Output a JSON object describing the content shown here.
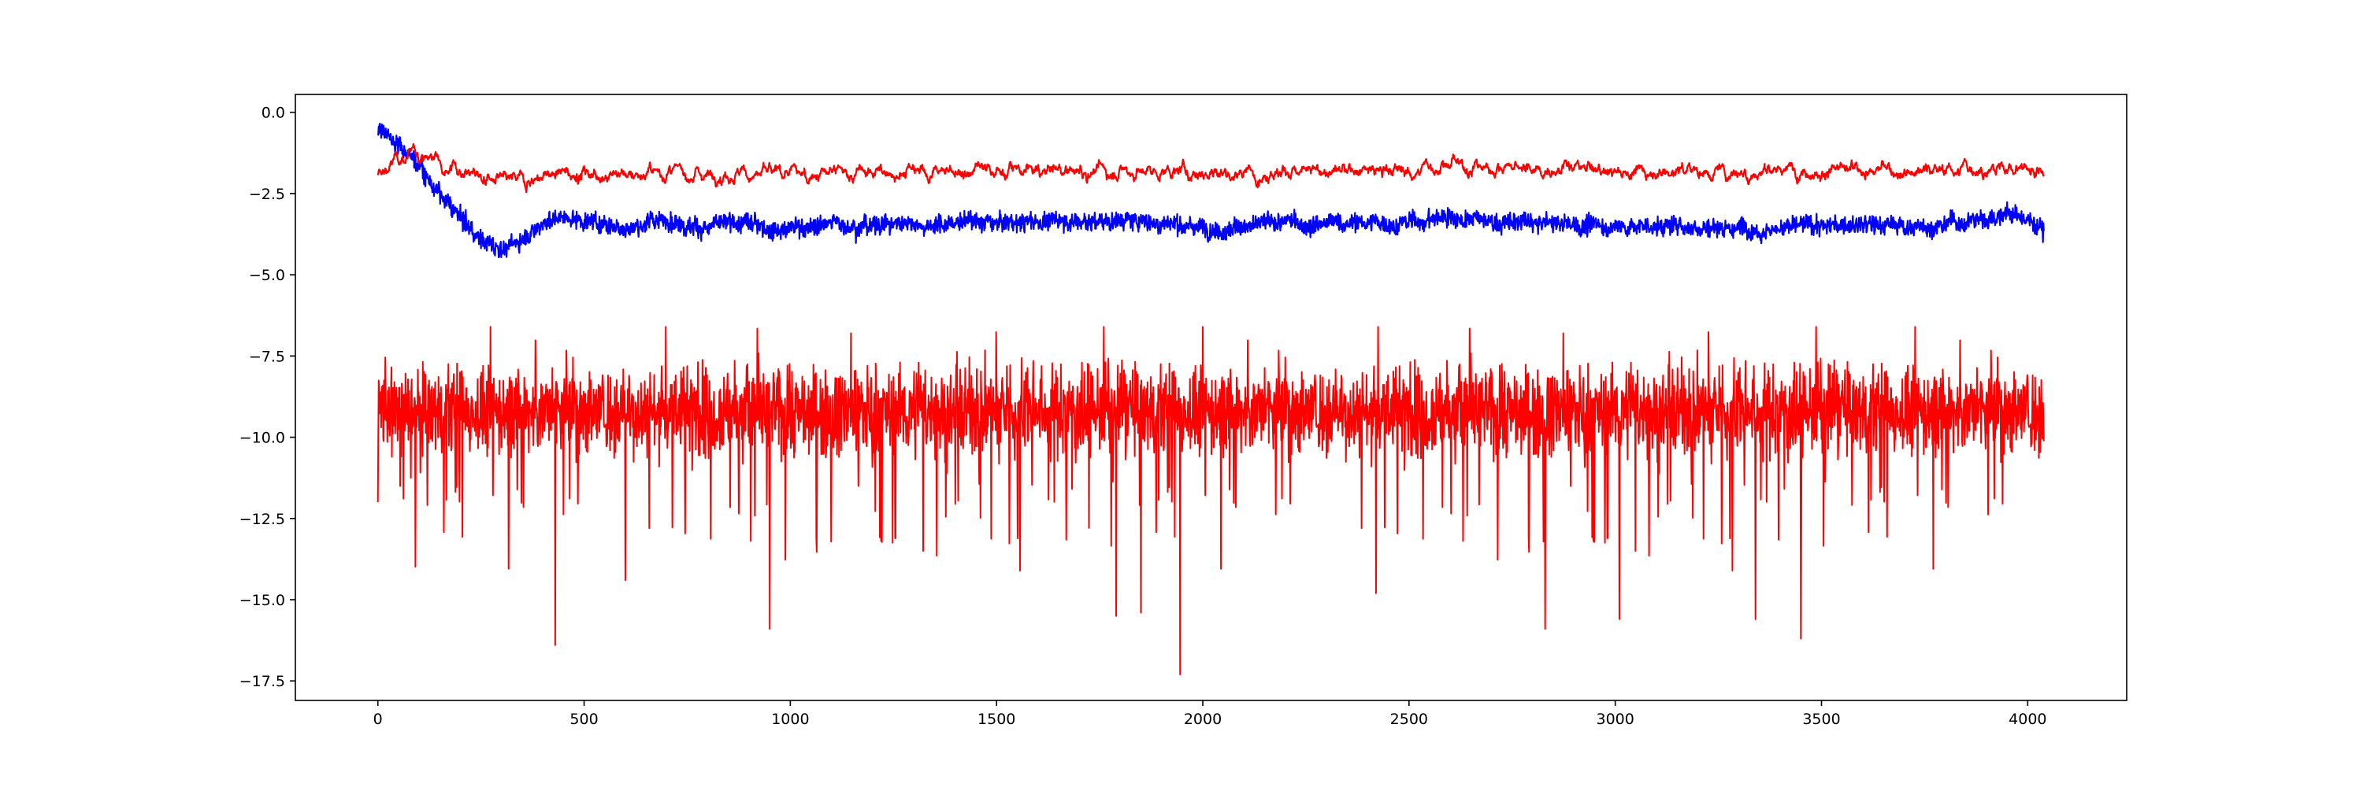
{
  "chart_data": {
    "type": "line",
    "title": "",
    "xlabel": "",
    "ylabel": "",
    "xlim": [
      -200,
      4240
    ],
    "ylim": [
      -18.1,
      0.55
    ],
    "grid": false,
    "legend": "none",
    "x_ticks": [
      0,
      500,
      1000,
      1500,
      2000,
      2500,
      3000,
      3500,
      4000
    ],
    "x_tick_labels": [
      "0",
      "500",
      "1000",
      "1500",
      "2000",
      "2500",
      "3000",
      "3500",
      "4000"
    ],
    "y_ticks": [
      0.0,
      -2.5,
      -5.0,
      -7.5,
      -10.0,
      -12.5,
      -15.0,
      -17.5
    ],
    "y_tick_labels": [
      "0.0",
      "−2.5",
      "−5.0",
      "−7.5",
      "−10.0",
      "−12.5",
      "−15.0",
      "−17.5"
    ],
    "n_points": 4040,
    "series": [
      {
        "id": "red_smooth",
        "color": "#ff0000",
        "mean": -1.85,
        "noise_amplitude": 0.06,
        "x": [
          0,
          50,
          100,
          150,
          200,
          250,
          300,
          350,
          400,
          450,
          500,
          1000,
          1500,
          2000,
          2500,
          2600,
          3000,
          3500,
          4000,
          4040
        ],
        "y": [
          -2.0,
          -1.4,
          -1.3,
          -1.45,
          -1.7,
          -2.0,
          -2.15,
          -2.1,
          -1.95,
          -1.9,
          -1.85,
          -1.9,
          -1.8,
          -1.85,
          -1.8,
          -1.65,
          -1.8,
          -1.8,
          -1.7,
          -1.75
        ]
      },
      {
        "id": "blue_noisy",
        "color": "#0000ff",
        "mean": -3.4,
        "noise_amplitude": 0.45,
        "x": [
          0,
          50,
          100,
          150,
          200,
          250,
          300,
          350,
          400,
          450,
          500,
          600,
          700,
          800,
          1000,
          1200,
          1500,
          1800,
          2000,
          2500,
          2600,
          2700,
          3000,
          3500,
          3800,
          3950,
          4040
        ],
        "y": [
          -0.5,
          -0.9,
          -1.6,
          -2.5,
          -3.3,
          -3.9,
          -4.2,
          -3.9,
          -3.3,
          -3.2,
          -3.3,
          -3.5,
          -3.3,
          -3.5,
          -3.5,
          -3.4,
          -3.4,
          -3.3,
          -3.5,
          -3.4,
          -3.2,
          -3.4,
          -3.5,
          -3.5,
          -3.5,
          -3.1,
          -3.5
        ]
      },
      {
        "id": "red_noisy",
        "color": "#ff0000",
        "mean": -9.2,
        "noise_amplitude": 1.0,
        "min": -17.3,
        "max": -6.6,
        "x": [
          0,
          4040
        ],
        "y": [
          -9.2,
          -9.2
        ],
        "spikes": [
          {
            "x": 0,
            "y": -12.0
          },
          {
            "x": 430,
            "y": -16.4
          },
          {
            "x": 600,
            "y": -14.4
          },
          {
            "x": 950,
            "y": -15.9
          },
          {
            "x": 1790,
            "y": -15.5
          },
          {
            "x": 1850,
            "y": -15.4
          },
          {
            "x": 1945,
            "y": -17.3
          },
          {
            "x": 2420,
            "y": -14.8
          },
          {
            "x": 2830,
            "y": -15.9
          },
          {
            "x": 3010,
            "y": -15.6
          },
          {
            "x": 3340,
            "y": -15.6
          },
          {
            "x": 3450,
            "y": -16.2
          }
        ]
      }
    ]
  }
}
